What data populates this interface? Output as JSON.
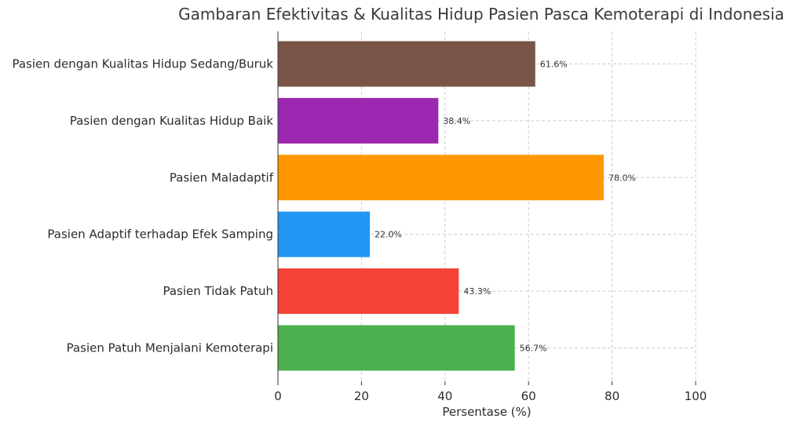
{
  "chart_data": {
    "type": "bar",
    "orientation": "horizontal",
    "title": "Gambaran Efektivitas & Kualitas Hidup Pasien Pasca Kemoterapi di Indonesia",
    "xlabel": "Persentase (%)",
    "ylabel": "",
    "xlim": [
      0,
      100
    ],
    "xticks": [
      0,
      20,
      40,
      60,
      80,
      100
    ],
    "grid": true,
    "categories": [
      "Pasien Patuh Menjalani Kemoterapi",
      "Pasien Tidak Patuh",
      "Pasien Adaptif terhadap Efek Samping",
      "Pasien Maladaptif",
      "Pasien dengan Kualitas Hidup Baik",
      "Pasien dengan Kualitas Hidup Sedang/Buruk"
    ],
    "values": [
      56.7,
      43.3,
      22.0,
      78.0,
      38.4,
      61.6
    ],
    "value_labels": [
      "56.7%",
      "43.3%",
      "22.0%",
      "78.0%",
      "38.4%",
      "61.6%"
    ],
    "colors": [
      "#4caf50",
      "#f44336",
      "#2196f3",
      "#ff9800",
      "#9c27b0",
      "#795548"
    ]
  }
}
